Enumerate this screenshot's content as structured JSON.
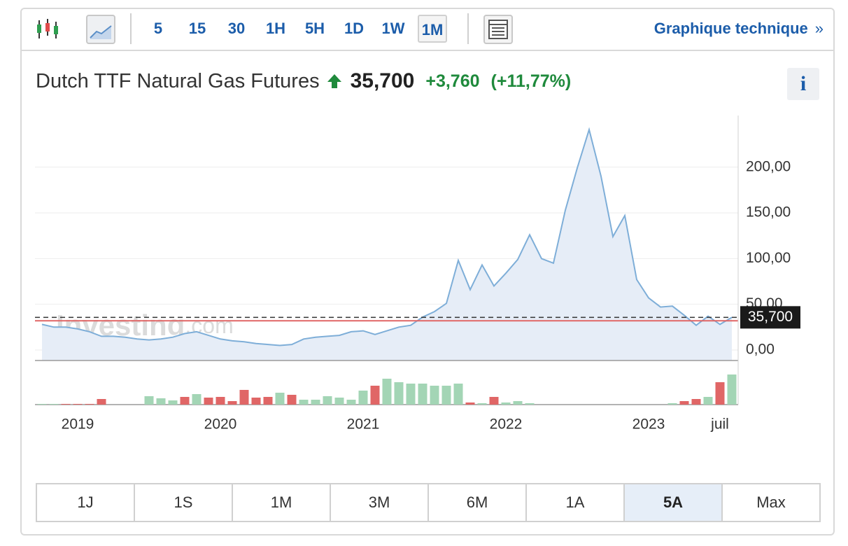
{
  "toolbar": {
    "intervals": [
      {
        "label": "5"
      },
      {
        "label": "15"
      },
      {
        "label": "30"
      },
      {
        "label": "1H"
      },
      {
        "label": "5H"
      },
      {
        "label": "1D"
      },
      {
        "label": "1W"
      },
      {
        "label": "1M",
        "selected": true
      }
    ],
    "link": "Graphique technique",
    "link_arrow": "»"
  },
  "header": {
    "name": "Dutch TTF Natural Gas Futures",
    "last": "35,700",
    "change": "+3,760",
    "change_percent": "(+11,77%)",
    "info": "i"
  },
  "chart_data": {
    "type": "area",
    "categories": [
      null,
      null,
      null,
      "2019",
      null,
      null,
      null,
      null,
      null,
      null,
      null,
      null,
      null,
      null,
      null,
      "2020",
      null,
      null,
      null,
      null,
      null,
      null,
      null,
      null,
      null,
      null,
      null,
      "2021",
      null,
      null,
      null,
      null,
      null,
      null,
      null,
      null,
      null,
      null,
      null,
      "2022",
      null,
      null,
      null,
      null,
      null,
      null,
      null,
      null,
      null,
      null,
      null,
      "2023",
      null,
      null,
      null,
      null,
      null,
      "juil",
      null
    ],
    "values": [
      28,
      25,
      25,
      23,
      20,
      15,
      15,
      14,
      12,
      11,
      12,
      14,
      18,
      20,
      16,
      12,
      10,
      9,
      7,
      6,
      5,
      6,
      12,
      14,
      15,
      16,
      20,
      21,
      17,
      21,
      25,
      27,
      36,
      42,
      51,
      98,
      66,
      93,
      70,
      84,
      99,
      126,
      100,
      95,
      153,
      199,
      241,
      190,
      124,
      147,
      77,
      57,
      47,
      48,
      38,
      27,
      37,
      28,
      35.7
    ],
    "color": "#7eaed8",
    "fill": "#e6edf7",
    "ylim": [
      -11.5,
      256.5
    ],
    "yticks": [
      {
        "value": 0,
        "label": "0,00"
      },
      {
        "value": 50,
        "label": "50,00"
      },
      {
        "value": 100,
        "label": "100,00"
      },
      {
        "value": 150,
        "label": "150,00"
      },
      {
        "value": 200,
        "label": "200,00"
      }
    ],
    "grid": true,
    "last_price": {
      "value": 35.7,
      "label": "35,700"
    },
    "reference_line": {
      "value": 31.94,
      "color": "#e06666"
    },
    "watermark": [
      "Investing",
      ".com"
    ],
    "volume": {
      "values": [
        1,
        1,
        1,
        1,
        1,
        8,
        0,
        0,
        0,
        12,
        9,
        6,
        11,
        15,
        10,
        11,
        5,
        21,
        10,
        11,
        17,
        14,
        7,
        7,
        12,
        10,
        7,
        20,
        27,
        37,
        32,
        30,
        30,
        27,
        27,
        30,
        3,
        2,
        11,
        3,
        5,
        2,
        0,
        0,
        0,
        0,
        0,
        0,
        0,
        0,
        0,
        0,
        0,
        2,
        5,
        8,
        11,
        32,
        43
      ],
      "colors": [
        "#a3d5b5",
        "#a3d5b5",
        "#e06666",
        "#e06666",
        "#e06666",
        "#e06666",
        "#a3d5b5",
        "#a3d5b5",
        "#a3d5b5",
        "#a3d5b5",
        "#a3d5b5",
        "#a3d5b5",
        "#e06666",
        "#a3d5b5",
        "#e06666",
        "#e06666",
        "#e06666",
        "#e06666",
        "#e06666",
        "#e06666",
        "#a3d5b5",
        "#e06666",
        "#a3d5b5",
        "#a3d5b5",
        "#a3d5b5",
        "#a3d5b5",
        "#a3d5b5",
        "#a3d5b5",
        "#e06666",
        "#a3d5b5",
        "#a3d5b5",
        "#a3d5b5",
        "#a3d5b5",
        "#a3d5b5",
        "#a3d5b5",
        "#a3d5b5",
        "#e06666",
        "#a3d5b5",
        "#e06666",
        "#a3d5b5",
        "#a3d5b5",
        "#a3d5b5",
        "#a3d5b5",
        "#a3d5b5",
        "#a3d5b5",
        "#a3d5b5",
        "#a3d5b5",
        "#a3d5b5",
        "#a3d5b5",
        "#a3d5b5",
        "#a3d5b5",
        "#a3d5b5",
        "#a3d5b5",
        "#a3d5b5",
        "#e06666",
        "#e06666",
        "#a3d5b5",
        "#e06666",
        "#a3d5b5"
      ]
    }
  },
  "range_buttons": [
    {
      "label": "1J"
    },
    {
      "label": "1S"
    },
    {
      "label": "1M"
    },
    {
      "label": "3M"
    },
    {
      "label": "6M"
    },
    {
      "label": "1A"
    },
    {
      "label": "5A",
      "selected": true
    },
    {
      "label": "Max"
    }
  ]
}
